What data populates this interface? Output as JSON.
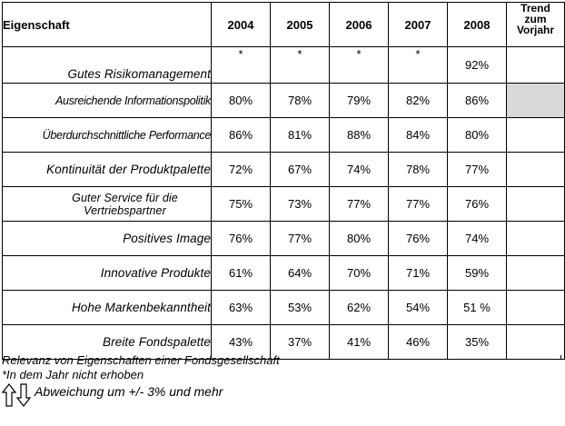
{
  "table": {
    "headers": {
      "property": "Eigenschaft",
      "years": [
        "2004",
        "2005",
        "2006",
        "2007",
        "2008"
      ],
      "trend_lines": [
        "Trend",
        "zum",
        "Vorjahr"
      ]
    },
    "rows": [
      {
        "label": "Gutes Risikomanagement",
        "values": [
          "*",
          "*",
          "*",
          "*",
          "92%"
        ],
        "trend": ""
      },
      {
        "label": "Ausreichende Informationspolitik",
        "values": [
          "80%",
          "78%",
          "79%",
          "82%",
          "86%"
        ],
        "trend": ""
      },
      {
        "label": "Überdurchschnittliche Performance",
        "values": [
          "86%",
          "81%",
          "88%",
          "84%",
          "80%"
        ],
        "trend": ""
      },
      {
        "label": "Kontinuität der Produktpalette",
        "values": [
          "72%",
          "67%",
          "74%",
          "78%",
          "77%"
        ],
        "trend": ""
      },
      {
        "label_lines": [
          "Guter Service für die",
          "Vertriebspartner"
        ],
        "values": [
          "75%",
          "73%",
          "77%",
          "77%",
          "76%"
        ],
        "trend": ""
      },
      {
        "label": "Positives Image",
        "values": [
          "76%",
          "77%",
          "80%",
          "76%",
          "74%"
        ],
        "trend": ""
      },
      {
        "label": "Innovative Produkte",
        "values": [
          "61%",
          "64%",
          "70%",
          "71%",
          "59%"
        ],
        "trend": ""
      },
      {
        "label": "Hohe Markenbekanntheit",
        "values": [
          "63%",
          "53%",
          "62%",
          "54%",
          "51 %"
        ],
        "trend": ""
      },
      {
        "label": "Breite Fondspalette",
        "values": [
          "43%",
          "37%",
          "41%",
          "46%",
          "35%"
        ],
        "trend": ""
      }
    ]
  },
  "footnotes": {
    "caption": "Relevanz von Eigenschaften einer Fondsgesellschaft",
    "asterisk_note": "*In dem Jahr nicht erhoben",
    "legend_text": "Abweichung um +/- 3% und mehr",
    "legend_icons": [
      "arrow-up-outline-icon",
      "arrow-down-outline-icon"
    ]
  },
  "colors": {
    "shaded_cell": "#d9d9d9"
  }
}
